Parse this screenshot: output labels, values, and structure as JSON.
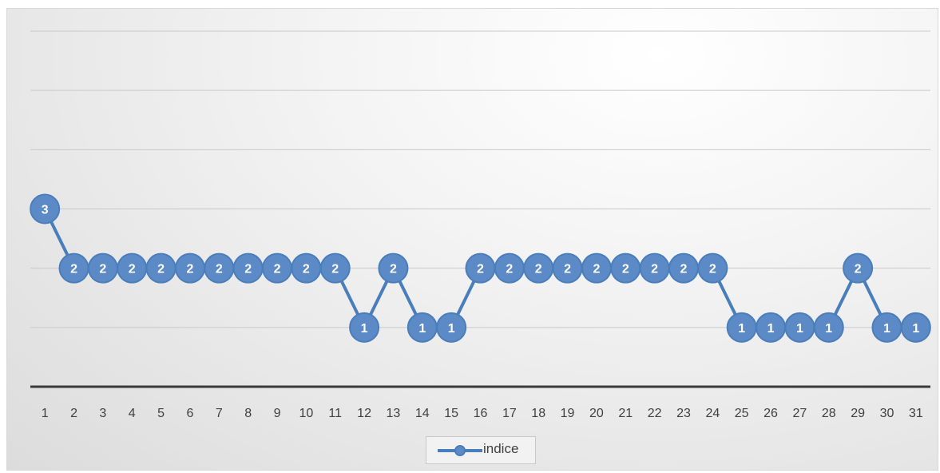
{
  "chart_data": {
    "type": "line",
    "categories": [
      "1",
      "2",
      "3",
      "4",
      "5",
      "6",
      "7",
      "8",
      "9",
      "10",
      "11",
      "12",
      "13",
      "14",
      "15",
      "16",
      "17",
      "18",
      "19",
      "20",
      "21",
      "22",
      "23",
      "24",
      "25",
      "26",
      "27",
      "28",
      "29",
      "30",
      "31"
    ],
    "series": [
      {
        "name": "indice",
        "values": [
          3,
          2,
          2,
          2,
          2,
          2,
          2,
          2,
          2,
          2,
          2,
          1,
          2,
          1,
          1,
          2,
          2,
          2,
          2,
          2,
          2,
          2,
          2,
          2,
          1,
          1,
          1,
          1,
          2,
          1,
          1
        ]
      }
    ],
    "ylim": [
      0,
      6
    ],
    "grid": true,
    "data_labels": true,
    "legend_position": "bottom",
    "colors": {
      "series": "#4a7ebb",
      "marker_fill": "#5b8ac6",
      "gridline": "#c9c9c9",
      "axis": "#3a3a3a"
    }
  }
}
